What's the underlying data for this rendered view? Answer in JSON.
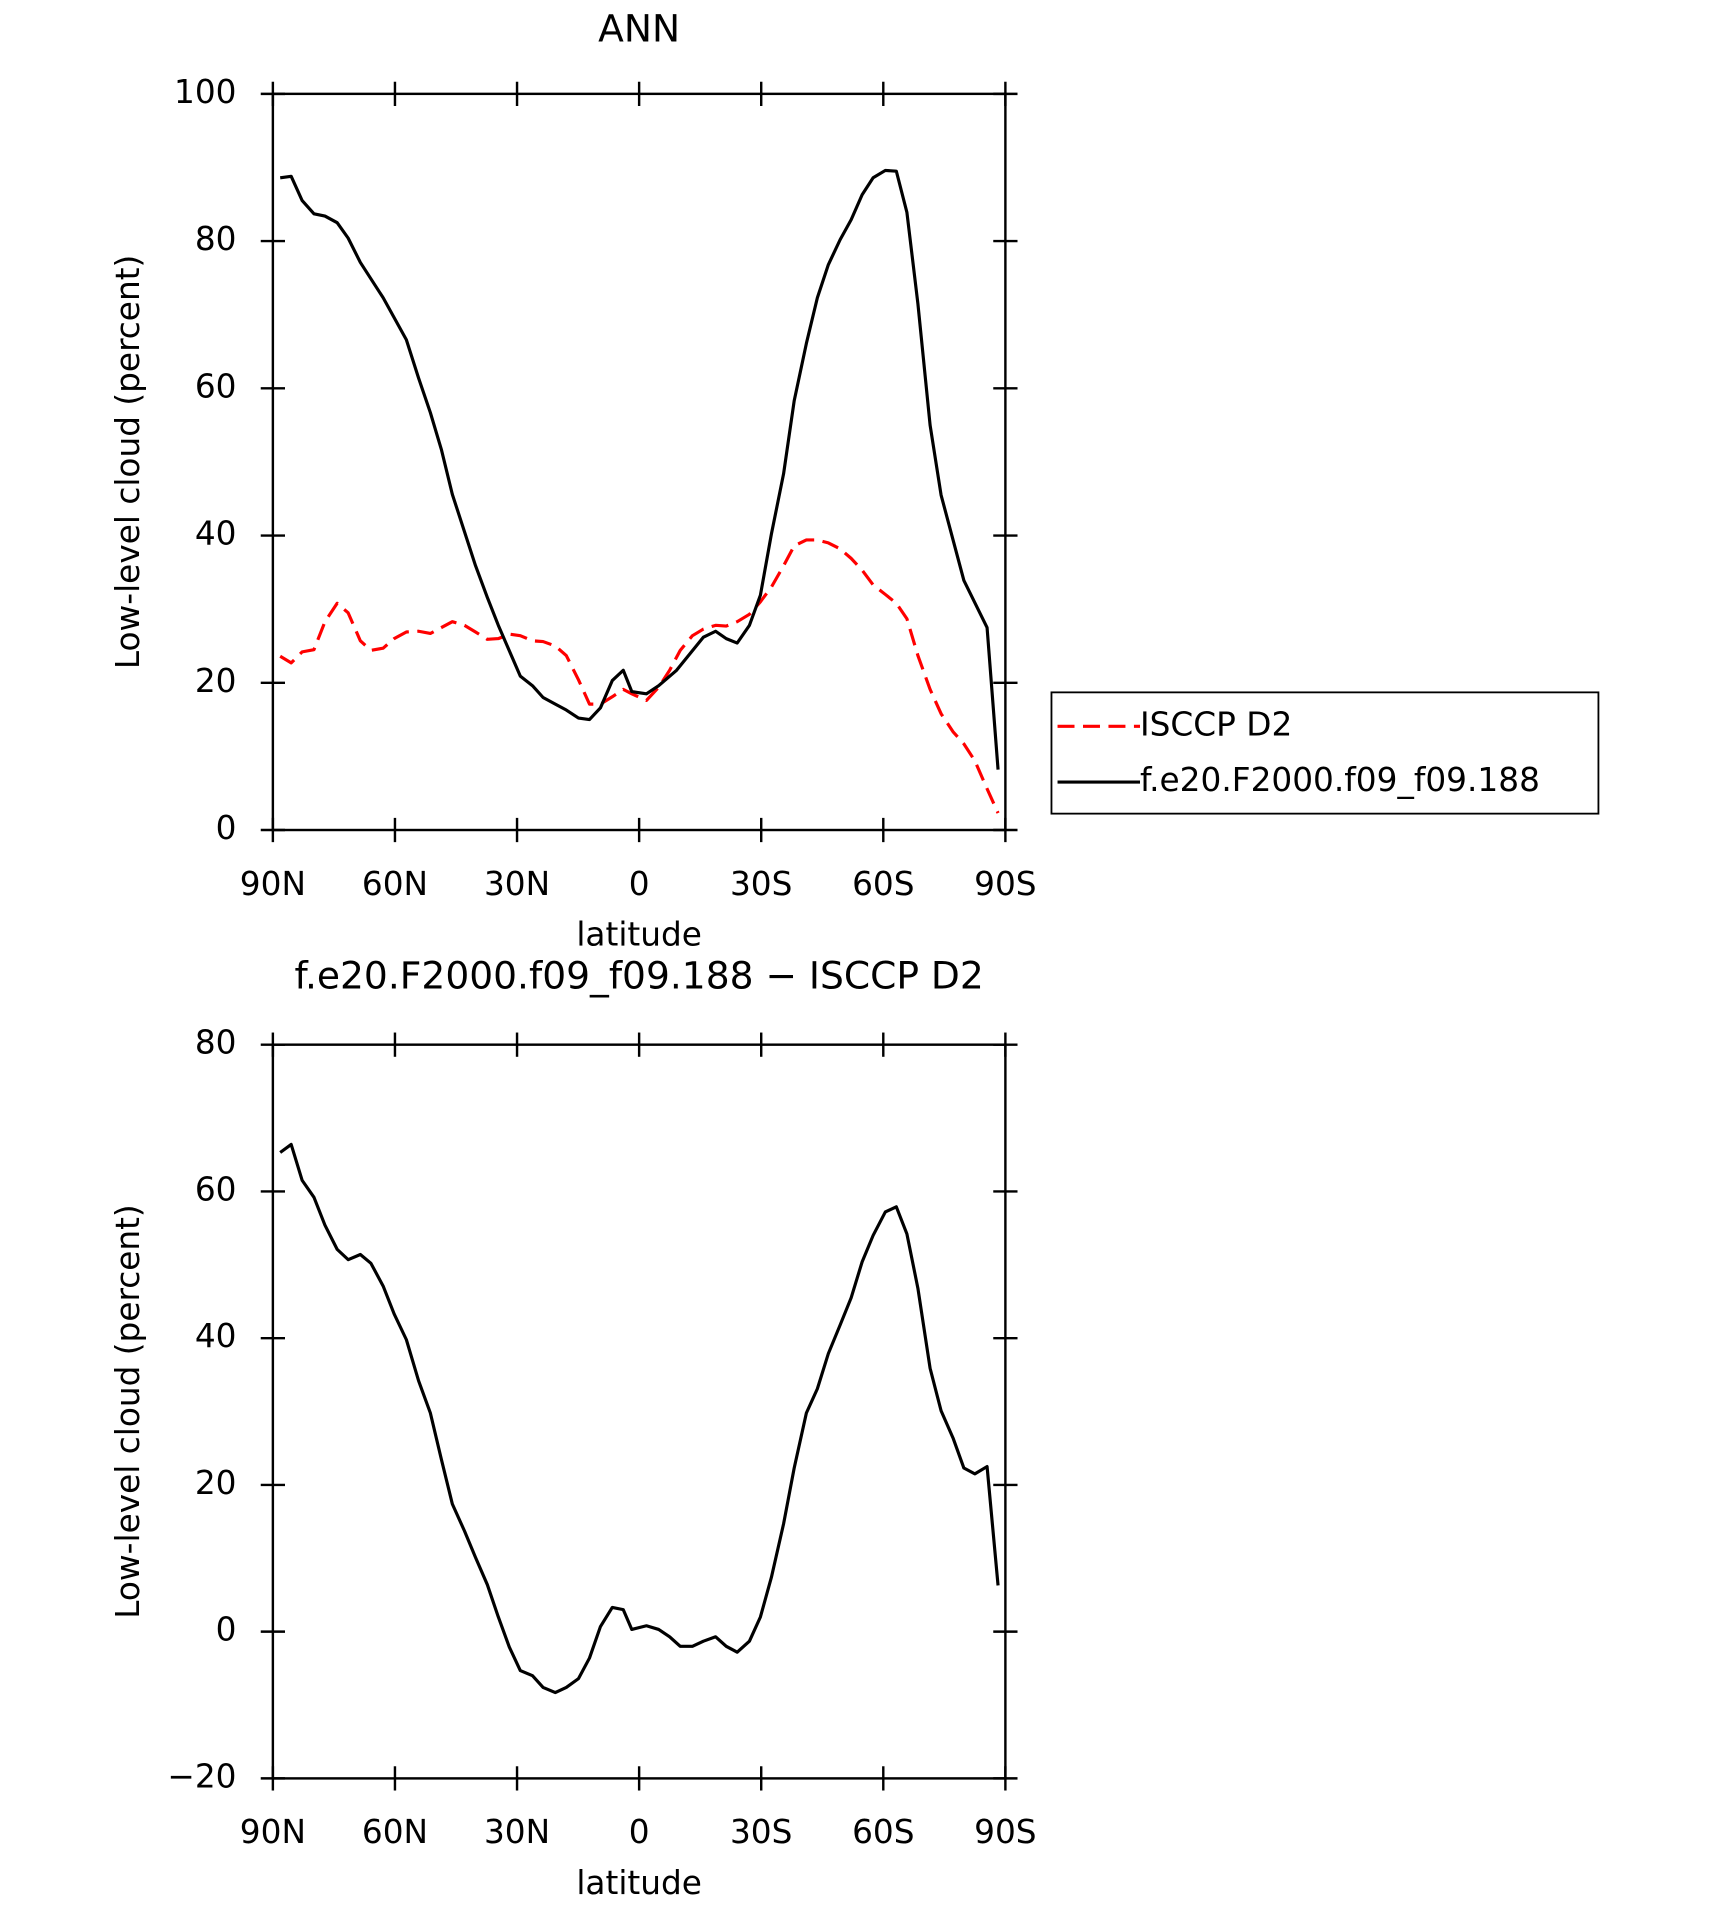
{
  "chart_data": [
    {
      "type": "line",
      "title": "ANN",
      "xlabel": "latitude",
      "ylabel": "Low-level cloud (percent)",
      "xlim": [
        90,
        -90
      ],
      "xticks": [
        {
          "value": 90,
          "label": "90N"
        },
        {
          "value": 60,
          "label": "60N"
        },
        {
          "value": 30,
          "label": "30N"
        },
        0,
        {
          "value": -30,
          "label": "30S"
        },
        {
          "value": -60,
          "label": "60S"
        },
        {
          "value": -90,
          "label": "90S"
        }
      ],
      "ylim": [
        0,
        100
      ],
      "yticks": [
        0,
        20,
        40,
        60,
        80,
        100
      ],
      "legend": "right",
      "series": [
        {
          "name": "ISCCP D2",
          "color": "#ff0000",
          "dash": true,
          "x": [
            88.2,
            85.5,
            82.8,
            79.9,
            77.2,
            74.2,
            71.5,
            68.5,
            65.9,
            62.9,
            60.2,
            57.2,
            54.2,
            51.3,
            48.6,
            45.9,
            42.9,
            40.2,
            37.3,
            34.6,
            31.9,
            29.2,
            26.2,
            23.6,
            20.6,
            17.9,
            14.9,
            12.2,
            9.5,
            6.6,
            3.9,
            1.8,
            -1.8,
            -4.8,
            -7.5,
            -10.1,
            -13.1,
            -15.8,
            -18.8,
            -21.4,
            -24.1,
            -27.1,
            -29.8,
            -32.5,
            -35.5,
            -38.1,
            -41.1,
            -43.8,
            -46.5,
            -49.4,
            -52.1,
            -54.8,
            -57.5,
            -60.5,
            -63.2,
            -65.8,
            -68.5,
            -71.5,
            -74.2,
            -77.2,
            -79.8,
            -82.5,
            -85.5,
            -88.2
          ],
          "values": [
            23.6,
            22.7,
            24.2,
            24.5,
            28.3,
            30.8,
            29.5,
            25.7,
            24.4,
            24.7,
            26.0,
            26.9,
            27.0,
            26.7,
            27.5,
            28.3,
            27.8,
            26.9,
            25.9,
            26.0,
            26.6,
            26.4,
            25.7,
            25.6,
            25.0,
            23.7,
            20.4,
            17.1,
            17.1,
            18.1,
            19.1,
            18.5,
            17.6,
            19.4,
            21.7,
            24.4,
            26.4,
            27.3,
            27.8,
            27.7,
            28.3,
            29.3,
            31.0,
            33.0,
            35.9,
            38.6,
            39.4,
            39.4,
            39.0,
            38.2,
            36.9,
            35.3,
            33.3,
            32.0,
            30.8,
            28.7,
            23.7,
            19.1,
            15.8,
            13.3,
            11.7,
            9.4,
            5.6,
            2.3
          ]
        },
        {
          "name": "f.e20.F2000.f09_f09.188",
          "color": "#000000",
          "dash": false,
          "x": [
            88.2,
            85.5,
            82.8,
            79.9,
            77.2,
            74.2,
            71.5,
            68.5,
            62.9,
            57.2,
            54.2,
            51.3,
            48.6,
            45.9,
            40.2,
            37.3,
            34.6,
            29.2,
            26.2,
            23.6,
            20.6,
            17.9,
            14.9,
            12.2,
            9.5,
            6.6,
            3.9,
            1.8,
            -1.8,
            -4.8,
            -9.2,
            -15.8,
            -18.8,
            -21.4,
            -24.1,
            -27.1,
            -29.8,
            -32.5,
            -35.5,
            -38.1,
            -41.1,
            -43.8,
            -46.5,
            -49.4,
            -52.1,
            -54.8,
            -57.5,
            -60.5,
            -63.2,
            -65.8,
            -68.5,
            -71.5,
            -74.2,
            -79.8,
            -85.5,
            -88.2
          ],
          "values": [
            88.6,
            88.8,
            85.5,
            83.7,
            83.4,
            82.5,
            80.4,
            77.1,
            72.3,
            66.6,
            61.4,
            56.7,
            51.7,
            45.6,
            35.9,
            31.6,
            27.8,
            20.9,
            19.6,
            18.0,
            17.1,
            16.3,
            15.2,
            15.0,
            16.6,
            20.3,
            21.7,
            18.8,
            18.5,
            19.6,
            21.7,
            26.2,
            27.0,
            26.0,
            25.4,
            27.8,
            31.9,
            40.2,
            48.4,
            58.3,
            66.1,
            72.3,
            76.8,
            80.2,
            82.9,
            86.3,
            88.6,
            89.6,
            89.5,
            83.9,
            71.5,
            55.0,
            45.5,
            33.9,
            27.5,
            8.2
          ]
        }
      ]
    },
    {
      "type": "line",
      "title": "f.e20.F2000.f09_f09.188 − ISCCP D2",
      "xlabel": "latitude",
      "ylabel": "Low-level cloud (percent)",
      "xlim": [
        90,
        -90
      ],
      "xticks": [
        {
          "value": 90,
          "label": "90N"
        },
        {
          "value": 60,
          "label": "60N"
        },
        {
          "value": 30,
          "label": "30N"
        },
        0,
        {
          "value": -30,
          "label": "30S"
        },
        {
          "value": -60,
          "label": "60S"
        },
        {
          "value": -90,
          "label": "90S"
        }
      ],
      "ylim": [
        -20,
        80
      ],
      "yticks": [
        {
          "value": -20,
          "label": "−20"
        },
        0,
        20,
        40,
        60,
        80
      ],
      "series": [
        {
          "color": "#000000",
          "dash": false,
          "x": [
            88.2,
            85.5,
            82.8,
            79.9,
            77.2,
            74.2,
            71.5,
            68.5,
            65.9,
            62.9,
            60.2,
            57.2,
            54.2,
            51.3,
            48.6,
            45.9,
            42.9,
            40.2,
            37.3,
            34.6,
            31.9,
            29.2,
            26.2,
            23.6,
            20.6,
            17.9,
            14.9,
            12.2,
            9.5,
            6.6,
            3.9,
            1.8,
            -1.8,
            -4.8,
            -7.5,
            -10.1,
            -13.1,
            -15.8,
            -18.8,
            -21.4,
            -24.1,
            -27.1,
            -29.8,
            -32.5,
            -35.5,
            -38.1,
            -41.1,
            -43.8,
            -46.5,
            -49.4,
            -52.1,
            -54.8,
            -57.5,
            -60.5,
            -63.2,
            -65.8,
            -68.5,
            -71.5,
            -74.2,
            -77.2,
            -79.8,
            -82.5,
            -85.5,
            -88.2
          ],
          "values": [
            65.3,
            66.4,
            61.5,
            59.2,
            55.4,
            52.1,
            50.7,
            51.4,
            50.2,
            47.1,
            43.3,
            39.8,
            34.2,
            29.8,
            23.5,
            17.4,
            13.7,
            10.1,
            6.4,
            2.0,
            -2.1,
            -5.3,
            -6.0,
            -7.6,
            -8.3,
            -7.6,
            -6.4,
            -3.6,
            0.7,
            3.3,
            3.0,
            0.3,
            0.8,
            0.3,
            -0.7,
            -2.0,
            -2.0,
            -1.3,
            -0.7,
            -2.0,
            -2.8,
            -1.3,
            2.0,
            7.4,
            14.7,
            22.3,
            29.8,
            33.1,
            37.9,
            41.8,
            45.5,
            50.4,
            54.0,
            57.2,
            57.9,
            54.2,
            46.8,
            35.9,
            30.1,
            26.3,
            22.3,
            21.5,
            22.5,
            6.3
          ]
        }
      ]
    }
  ]
}
